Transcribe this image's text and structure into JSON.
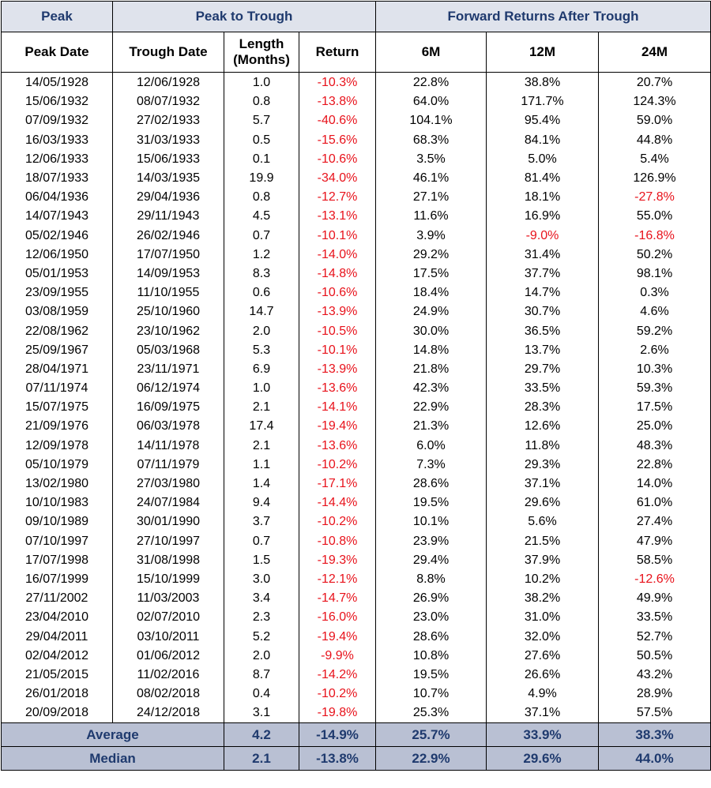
{
  "header": {
    "group_peak": "Peak",
    "group_peak_to_trough": "Peak to Trough",
    "group_forward": "Forward Returns After Trough",
    "col_peak_date": "Peak Date",
    "col_trough_date": "Trough Date",
    "col_length_line1": "Length",
    "col_length_line2": "(Months)",
    "col_return": "Return",
    "col_6m": "6M",
    "col_12m": "12M",
    "col_24m": "24M"
  },
  "rows": [
    [
      "14/05/1928",
      "12/06/1928",
      "1.0",
      "-10.3%",
      "22.8%",
      "38.8%",
      "20.7%"
    ],
    [
      "15/06/1932",
      "08/07/1932",
      "0.8",
      "-13.8%",
      "64.0%",
      "171.7%",
      "124.3%"
    ],
    [
      "07/09/1932",
      "27/02/1933",
      "5.7",
      "-40.6%",
      "104.1%",
      "95.4%",
      "59.0%"
    ],
    [
      "16/03/1933",
      "31/03/1933",
      "0.5",
      "-15.6%",
      "68.3%",
      "84.1%",
      "44.8%"
    ],
    [
      "12/06/1933",
      "15/06/1933",
      "0.1",
      "-10.6%",
      "3.5%",
      "5.0%",
      "5.4%"
    ],
    [
      "18/07/1933",
      "14/03/1935",
      "19.9",
      "-34.0%",
      "46.1%",
      "81.4%",
      "126.9%"
    ],
    [
      "06/04/1936",
      "29/04/1936",
      "0.8",
      "-12.7%",
      "27.1%",
      "18.1%",
      "-27.8%"
    ],
    [
      "14/07/1943",
      "29/11/1943",
      "4.5",
      "-13.1%",
      "11.6%",
      "16.9%",
      "55.0%"
    ],
    [
      "05/02/1946",
      "26/02/1946",
      "0.7",
      "-10.1%",
      "3.9%",
      "-9.0%",
      "-16.8%"
    ],
    [
      "12/06/1950",
      "17/07/1950",
      "1.2",
      "-14.0%",
      "29.2%",
      "31.4%",
      "50.2%"
    ],
    [
      "05/01/1953",
      "14/09/1953",
      "8.3",
      "-14.8%",
      "17.5%",
      "37.7%",
      "98.1%"
    ],
    [
      "23/09/1955",
      "11/10/1955",
      "0.6",
      "-10.6%",
      "18.4%",
      "14.7%",
      "0.3%"
    ],
    [
      "03/08/1959",
      "25/10/1960",
      "14.7",
      "-13.9%",
      "24.9%",
      "30.7%",
      "4.6%"
    ],
    [
      "22/08/1962",
      "23/10/1962",
      "2.0",
      "-10.5%",
      "30.0%",
      "36.5%",
      "59.2%"
    ],
    [
      "25/09/1967",
      "05/03/1968",
      "5.3",
      "-10.1%",
      "14.8%",
      "13.7%",
      "2.6%"
    ],
    [
      "28/04/1971",
      "23/11/1971",
      "6.9",
      "-13.9%",
      "21.8%",
      "29.7%",
      "10.3%"
    ],
    [
      "07/11/1974",
      "06/12/1974",
      "1.0",
      "-13.6%",
      "42.3%",
      "33.5%",
      "59.3%"
    ],
    [
      "15/07/1975",
      "16/09/1975",
      "2.1",
      "-14.1%",
      "22.9%",
      "28.3%",
      "17.5%"
    ],
    [
      "21/09/1976",
      "06/03/1978",
      "17.4",
      "-19.4%",
      "21.3%",
      "12.6%",
      "25.0%"
    ],
    [
      "12/09/1978",
      "14/11/1978",
      "2.1",
      "-13.6%",
      "6.0%",
      "11.8%",
      "48.3%"
    ],
    [
      "05/10/1979",
      "07/11/1979",
      "1.1",
      "-10.2%",
      "7.3%",
      "29.3%",
      "22.8%"
    ],
    [
      "13/02/1980",
      "27/03/1980",
      "1.4",
      "-17.1%",
      "28.6%",
      "37.1%",
      "14.0%"
    ],
    [
      "10/10/1983",
      "24/07/1984",
      "9.4",
      "-14.4%",
      "19.5%",
      "29.6%",
      "61.0%"
    ],
    [
      "09/10/1989",
      "30/01/1990",
      "3.7",
      "-10.2%",
      "10.1%",
      "5.6%",
      "27.4%"
    ],
    [
      "07/10/1997",
      "27/10/1997",
      "0.7",
      "-10.8%",
      "23.9%",
      "21.5%",
      "47.9%"
    ],
    [
      "17/07/1998",
      "31/08/1998",
      "1.5",
      "-19.3%",
      "29.4%",
      "37.9%",
      "58.5%"
    ],
    [
      "16/07/1999",
      "15/10/1999",
      "3.0",
      "-12.1%",
      "8.8%",
      "10.2%",
      "-12.6%"
    ],
    [
      "27/11/2002",
      "11/03/2003",
      "3.4",
      "-14.7%",
      "26.9%",
      "38.2%",
      "49.9%"
    ],
    [
      "23/04/2010",
      "02/07/2010",
      "2.3",
      "-16.0%",
      "23.0%",
      "31.0%",
      "33.5%"
    ],
    [
      "29/04/2011",
      "03/10/2011",
      "5.2",
      "-19.4%",
      "28.6%",
      "32.0%",
      "52.7%"
    ],
    [
      "02/04/2012",
      "01/06/2012",
      "2.0",
      "-9.9%",
      "10.8%",
      "27.6%",
      "50.5%"
    ],
    [
      "21/05/2015",
      "11/02/2016",
      "8.7",
      "-14.2%",
      "19.5%",
      "26.6%",
      "43.2%"
    ],
    [
      "26/01/2018",
      "08/02/2018",
      "0.4",
      "-10.2%",
      "10.7%",
      "4.9%",
      "28.9%"
    ],
    [
      "20/09/2018",
      "24/12/2018",
      "3.1",
      "-19.8%",
      "25.3%",
      "37.1%",
      "57.5%"
    ]
  ],
  "summary": [
    {
      "label": "Average",
      "values": [
        "4.2",
        "-14.9%",
        "25.7%",
        "33.9%",
        "38.3%"
      ]
    },
    {
      "label": "Median",
      "values": [
        "2.1",
        "-13.8%",
        "22.9%",
        "29.6%",
        "44.0%"
      ]
    }
  ],
  "colors": {
    "header_bg": "#dfe3ec",
    "header_text": "#1f3a6e",
    "summary_bg": "#b9c0d3",
    "negative": "#e8121b"
  }
}
